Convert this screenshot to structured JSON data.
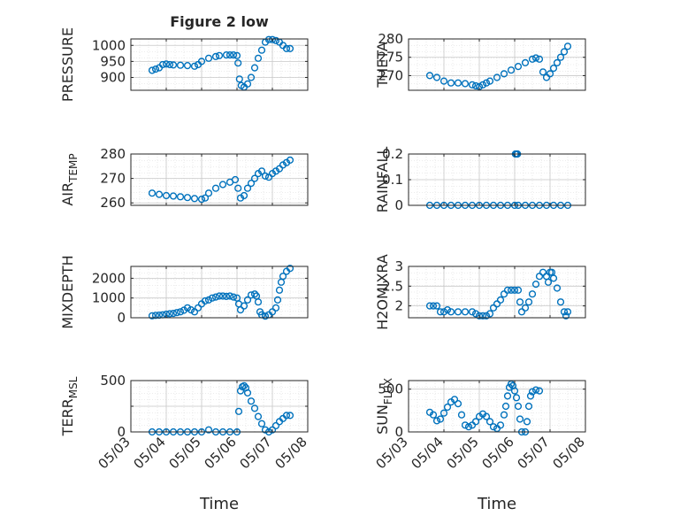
{
  "figure": {
    "title": "Figure 2 low",
    "xlabel": "Time"
  },
  "colors": {
    "marker": "#0072BD",
    "axis": "#262626",
    "grid": "#d9d9d9"
  },
  "chart_data": [
    {
      "type": "scatter",
      "ylabel": "PRESSURE",
      "ylabel_sub": "",
      "xlim": [
        "05/03",
        "05/08"
      ],
      "ylim": [
        860,
        1020
      ],
      "yticks": [
        900,
        950,
        1000
      ],
      "ytick_labels": [
        "900",
        "950",
        "1000"
      ],
      "points": [
        [
          3.6,
          922
        ],
        [
          3.7,
          926
        ],
        [
          3.8,
          930
        ],
        [
          3.9,
          940
        ],
        [
          4.0,
          942
        ],
        [
          4.1,
          940
        ],
        [
          4.2,
          939
        ],
        [
          4.4,
          938
        ],
        [
          4.6,
          937
        ],
        [
          4.8,
          935
        ],
        [
          4.9,
          940
        ],
        [
          5.0,
          950
        ],
        [
          5.2,
          960
        ],
        [
          5.4,
          965
        ],
        [
          5.5,
          968
        ],
        [
          5.7,
          970
        ],
        [
          5.8,
          970
        ],
        [
          5.9,
          970
        ],
        [
          6.0,
          968
        ],
        [
          6.03,
          945
        ],
        [
          6.07,
          895
        ],
        [
          6.12,
          875
        ],
        [
          6.2,
          870
        ],
        [
          6.3,
          880
        ],
        [
          6.4,
          900
        ],
        [
          6.5,
          930
        ],
        [
          6.6,
          960
        ],
        [
          6.7,
          985
        ],
        [
          6.8,
          1010
        ],
        [
          6.9,
          1018
        ],
        [
          7.0,
          1018
        ],
        [
          7.1,
          1015
        ],
        [
          7.2,
          1010
        ],
        [
          7.3,
          1000
        ],
        [
          7.4,
          990
        ],
        [
          7.5,
          990
        ]
      ]
    },
    {
      "type": "scatter",
      "ylabel": "THETA",
      "ylabel_sub": "",
      "xlim": [
        "05/03",
        "05/08"
      ],
      "ylim": [
        266,
        280
      ],
      "yticks": [
        270,
        275,
        280
      ],
      "ytick_labels": [
        "270",
        "275",
        "280"
      ],
      "points": [
        [
          3.6,
          270
        ],
        [
          3.8,
          269.5
        ],
        [
          4.0,
          268.5
        ],
        [
          4.2,
          268
        ],
        [
          4.4,
          268
        ],
        [
          4.6,
          267.8
        ],
        [
          4.8,
          267.5
        ],
        [
          4.9,
          267.2
        ],
        [
          5.0,
          267
        ],
        [
          5.1,
          267.5
        ],
        [
          5.2,
          268
        ],
        [
          5.3,
          268.5
        ],
        [
          5.5,
          269.5
        ],
        [
          5.7,
          270.5
        ],
        [
          5.9,
          271.5
        ],
        [
          6.1,
          272.5
        ],
        [
          6.3,
          273.5
        ],
        [
          6.5,
          274.5
        ],
        [
          6.6,
          274.8
        ],
        [
          6.7,
          274.5
        ],
        [
          6.8,
          271
        ],
        [
          6.9,
          269.5
        ],
        [
          7.0,
          270.5
        ],
        [
          7.1,
          272
        ],
        [
          7.2,
          273.5
        ],
        [
          7.3,
          275
        ],
        [
          7.4,
          276.5
        ],
        [
          7.5,
          278
        ]
      ]
    },
    {
      "type": "scatter",
      "ylabel": "AIR",
      "ylabel_sub": "TEMP",
      "xlim": [
        "05/03",
        "05/08"
      ],
      "ylim": [
        259,
        280
      ],
      "yticks": [
        260,
        270,
        280
      ],
      "ytick_labels": [
        "260",
        "270",
        "280"
      ],
      "points": [
        [
          3.6,
          264
        ],
        [
          3.8,
          263.5
        ],
        [
          4.0,
          263
        ],
        [
          4.2,
          262.8
        ],
        [
          4.4,
          262.5
        ],
        [
          4.6,
          262.2
        ],
        [
          4.8,
          261.8
        ],
        [
          5.0,
          261.5
        ],
        [
          5.1,
          262
        ],
        [
          5.2,
          264
        ],
        [
          5.4,
          266
        ],
        [
          5.6,
          267.5
        ],
        [
          5.8,
          268.5
        ],
        [
          5.95,
          269.5
        ],
        [
          6.03,
          266
        ],
        [
          6.1,
          262
        ],
        [
          6.2,
          263
        ],
        [
          6.3,
          266
        ],
        [
          6.4,
          268
        ],
        [
          6.5,
          270
        ],
        [
          6.6,
          272
        ],
        [
          6.7,
          273
        ],
        [
          6.8,
          271
        ],
        [
          6.9,
          270.5
        ],
        [
          7.0,
          272
        ],
        [
          7.1,
          273
        ],
        [
          7.2,
          274
        ],
        [
          7.3,
          275.5
        ],
        [
          7.4,
          276.5
        ],
        [
          7.5,
          277.5
        ]
      ]
    },
    {
      "type": "scatter",
      "ylabel": "RAINFALL",
      "ylabel_sub": "",
      "xlim": [
        "05/03",
        "05/08"
      ],
      "ylim": [
        0,
        0.2
      ],
      "yticks": [
        0,
        0.1,
        0.2
      ],
      "ytick_labels": [
        "0",
        "0.1",
        "0.2"
      ],
      "points": [
        [
          3.6,
          0
        ],
        [
          3.8,
          0
        ],
        [
          4.0,
          0
        ],
        [
          4.2,
          0
        ],
        [
          4.4,
          0
        ],
        [
          4.6,
          0
        ],
        [
          4.8,
          0
        ],
        [
          5.0,
          0
        ],
        [
          5.2,
          0
        ],
        [
          5.4,
          0
        ],
        [
          5.6,
          0
        ],
        [
          5.8,
          0
        ],
        [
          6.0,
          0
        ],
        [
          6.02,
          0.2
        ],
        [
          6.05,
          0.2
        ],
        [
          6.08,
          0.2
        ],
        [
          6.1,
          0
        ],
        [
          6.3,
          0
        ],
        [
          6.5,
          0
        ],
        [
          6.7,
          0
        ],
        [
          6.9,
          0
        ],
        [
          7.1,
          0
        ],
        [
          7.3,
          0
        ],
        [
          7.5,
          0
        ]
      ]
    },
    {
      "type": "scatter",
      "ylabel": "MIXDEPTH",
      "ylabel_sub": "",
      "xlim": [
        "05/03",
        "05/08"
      ],
      "ylim": [
        0,
        2600
      ],
      "yticks": [
        0,
        1000,
        2000
      ],
      "ytick_labels": [
        "0",
        "1000",
        "2000"
      ],
      "points": [
        [
          3.6,
          100
        ],
        [
          3.7,
          120
        ],
        [
          3.8,
          130
        ],
        [
          3.9,
          150
        ],
        [
          4.0,
          180
        ],
        [
          4.1,
          200
        ],
        [
          4.2,
          220
        ],
        [
          4.3,
          260
        ],
        [
          4.4,
          300
        ],
        [
          4.5,
          380
        ],
        [
          4.6,
          500
        ],
        [
          4.7,
          400
        ],
        [
          4.8,
          300
        ],
        [
          4.9,
          500
        ],
        [
          5.0,
          700
        ],
        [
          5.1,
          850
        ],
        [
          5.2,
          900
        ],
        [
          5.3,
          1000
        ],
        [
          5.4,
          1050
        ],
        [
          5.5,
          1100
        ],
        [
          5.6,
          1100
        ],
        [
          5.7,
          1080
        ],
        [
          5.8,
          1100
        ],
        [
          5.9,
          1050
        ],
        [
          6.0,
          1000
        ],
        [
          6.05,
          700
        ],
        [
          6.1,
          400
        ],
        [
          6.2,
          600
        ],
        [
          6.3,
          900
        ],
        [
          6.4,
          1150
        ],
        [
          6.5,
          1200
        ],
        [
          6.55,
          1100
        ],
        [
          6.6,
          800
        ],
        [
          6.65,
          300
        ],
        [
          6.7,
          150
        ],
        [
          6.8,
          80
        ],
        [
          6.9,
          150
        ],
        [
          7.0,
          300
        ],
        [
          7.1,
          500
        ],
        [
          7.15,
          900
        ],
        [
          7.2,
          1400
        ],
        [
          7.25,
          1800
        ],
        [
          7.3,
          2100
        ],
        [
          7.4,
          2350
        ],
        [
          7.5,
          2500
        ]
      ]
    },
    {
      "type": "scatter",
      "ylabel": "H2OMIXRA",
      "ylabel_sub": "",
      "xlim": [
        "05/03",
        "05/08"
      ],
      "ylim": [
        1.7,
        3.0
      ],
      "yticks": [
        2,
        2.5,
        3
      ],
      "ytick_labels": [
        "2",
        "2.5",
        "3"
      ],
      "points": [
        [
          3.6,
          2.0
        ],
        [
          3.7,
          2.0
        ],
        [
          3.8,
          2.0
        ],
        [
          3.9,
          1.85
        ],
        [
          4.0,
          1.85
        ],
        [
          4.1,
          1.9
        ],
        [
          4.2,
          1.85
        ],
        [
          4.4,
          1.85
        ],
        [
          4.6,
          1.85
        ],
        [
          4.8,
          1.85
        ],
        [
          4.9,
          1.8
        ],
        [
          5.0,
          1.75
        ],
        [
          5.1,
          1.75
        ],
        [
          5.2,
          1.75
        ],
        [
          5.3,
          1.8
        ],
        [
          5.4,
          1.95
        ],
        [
          5.5,
          2.05
        ],
        [
          5.6,
          2.15
        ],
        [
          5.7,
          2.3
        ],
        [
          5.8,
          2.4
        ],
        [
          5.9,
          2.4
        ],
        [
          6.0,
          2.4
        ],
        [
          6.1,
          2.4
        ],
        [
          6.15,
          2.1
        ],
        [
          6.2,
          1.85
        ],
        [
          6.3,
          1.95
        ],
        [
          6.4,
          2.1
        ],
        [
          6.5,
          2.3
        ],
        [
          6.6,
          2.55
        ],
        [
          6.7,
          2.75
        ],
        [
          6.8,
          2.85
        ],
        [
          6.9,
          2.75
        ],
        [
          6.95,
          2.6
        ],
        [
          7.0,
          2.85
        ],
        [
          7.05,
          2.85
        ],
        [
          7.1,
          2.7
        ],
        [
          7.2,
          2.45
        ],
        [
          7.3,
          2.1
        ],
        [
          7.4,
          1.85
        ],
        [
          7.45,
          1.75
        ],
        [
          7.5,
          1.85
        ]
      ]
    },
    {
      "type": "scatter",
      "ylabel": "TERR",
      "ylabel_sub": "MSL",
      "xlim": [
        "05/03",
        "05/08"
      ],
      "ylim": [
        0,
        500
      ],
      "yticks": [
        0,
        250,
        500
      ],
      "ytick_labels": [
        "0",
        "",
        "500"
      ],
      "xticks": [
        "05/03",
        "05/04",
        "05/05",
        "05/06",
        "05/07",
        "05/08"
      ],
      "points": [
        [
          3.6,
          0
        ],
        [
          3.8,
          0
        ],
        [
          4.0,
          0
        ],
        [
          4.2,
          0
        ],
        [
          4.4,
          0
        ],
        [
          4.6,
          0
        ],
        [
          4.8,
          0
        ],
        [
          5.0,
          0
        ],
        [
          5.2,
          20
        ],
        [
          5.4,
          0
        ],
        [
          5.6,
          0
        ],
        [
          5.8,
          0
        ],
        [
          6.0,
          0
        ],
        [
          6.05,
          200
        ],
        [
          6.1,
          400
        ],
        [
          6.15,
          440
        ],
        [
          6.2,
          450
        ],
        [
          6.25,
          430
        ],
        [
          6.3,
          380
        ],
        [
          6.4,
          300
        ],
        [
          6.5,
          230
        ],
        [
          6.6,
          150
        ],
        [
          6.7,
          80
        ],
        [
          6.8,
          20
        ],
        [
          6.9,
          0
        ],
        [
          7.0,
          20
        ],
        [
          7.1,
          60
        ],
        [
          7.2,
          100
        ],
        [
          7.3,
          130
        ],
        [
          7.4,
          160
        ],
        [
          7.5,
          160
        ]
      ]
    },
    {
      "type": "scatter",
      "ylabel": "SUN",
      "ylabel_sub": "FLUX",
      "xlim": [
        "05/03",
        "05/08"
      ],
      "ylim": [
        0,
        600
      ],
      "yticks": [
        0,
        500
      ],
      "ytick_labels": [
        "0",
        "500"
      ],
      "xticks": [
        "05/03",
        "05/04",
        "05/05",
        "05/06",
        "05/07",
        "05/08"
      ],
      "points": [
        [
          3.6,
          230
        ],
        [
          3.7,
          200
        ],
        [
          3.8,
          130
        ],
        [
          3.9,
          150
        ],
        [
          4.0,
          220
        ],
        [
          4.1,
          290
        ],
        [
          4.2,
          350
        ],
        [
          4.3,
          380
        ],
        [
          4.4,
          330
        ],
        [
          4.5,
          200
        ],
        [
          4.6,
          80
        ],
        [
          4.7,
          60
        ],
        [
          4.8,
          80
        ],
        [
          4.9,
          120
        ],
        [
          5.0,
          180
        ],
        [
          5.1,
          210
        ],
        [
          5.2,
          180
        ],
        [
          5.3,
          120
        ],
        [
          5.4,
          60
        ],
        [
          5.5,
          40
        ],
        [
          5.6,
          80
        ],
        [
          5.7,
          200
        ],
        [
          5.75,
          300
        ],
        [
          5.8,
          420
        ],
        [
          5.85,
          520
        ],
        [
          5.9,
          560
        ],
        [
          5.95,
          540
        ],
        [
          6.0,
          480
        ],
        [
          6.05,
          400
        ],
        [
          6.1,
          300
        ],
        [
          6.15,
          150
        ],
        [
          6.2,
          0
        ],
        [
          6.3,
          0
        ],
        [
          6.35,
          120
        ],
        [
          6.4,
          300
        ],
        [
          6.45,
          420
        ],
        [
          6.5,
          470
        ],
        [
          6.6,
          490
        ],
        [
          6.7,
          480
        ]
      ]
    }
  ]
}
